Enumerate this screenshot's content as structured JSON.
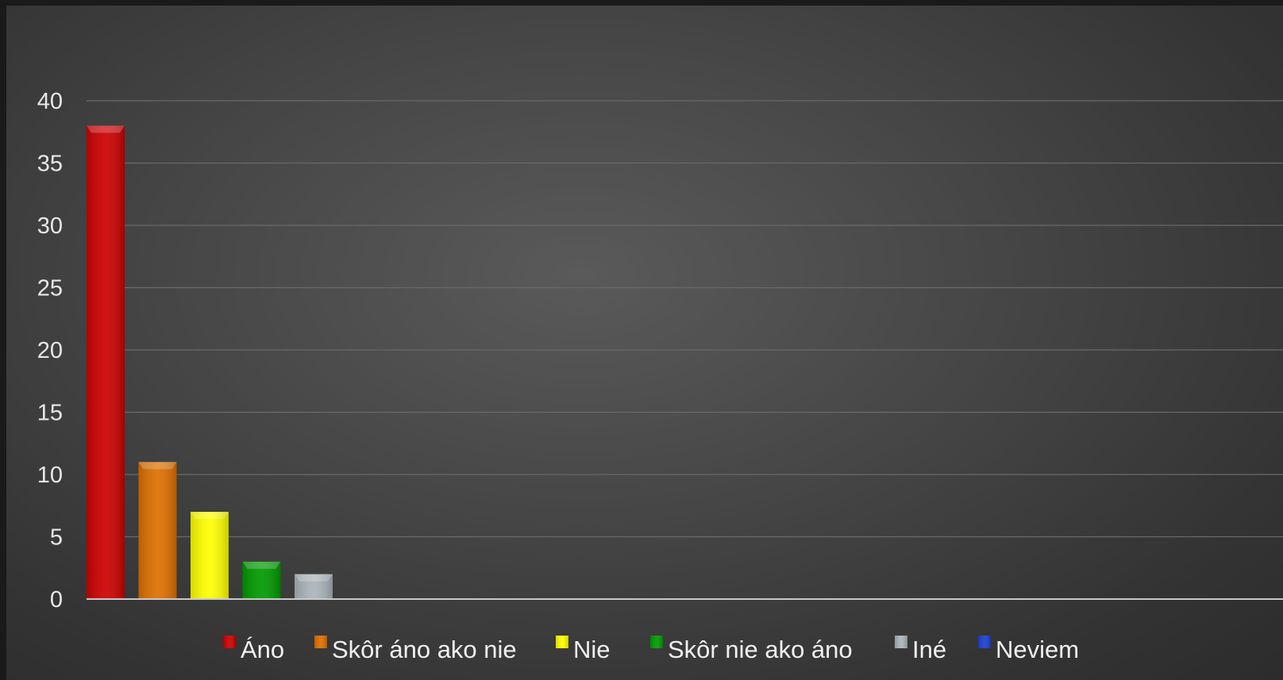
{
  "chart_data": {
    "type": "bar",
    "categories": [
      "Áno",
      "Skôr áno ako nie",
      "Nie",
      "Skôr nie ako áno",
      "Iné",
      "Neviem"
    ],
    "series": [
      {
        "name": "Áno",
        "value": 38,
        "color": "#cc0000"
      },
      {
        "name": "Skôr áno ako nie",
        "value": 11,
        "color": "#dd6f00"
      },
      {
        "name": "Nie",
        "value": 7,
        "color": "#ffff00"
      },
      {
        "name": "Skôr nie ako áno",
        "value": 3,
        "color": "#009a00"
      },
      {
        "name": "Iné",
        "value": 2,
        "color": "#aab4ba"
      },
      {
        "name": "Neviem",
        "value": 0,
        "color": "#1a3fcf"
      }
    ],
    "ylim": [
      0,
      40
    ],
    "yticks": [
      "0",
      "5",
      "10",
      "15",
      "20",
      "25",
      "30",
      "35",
      "40"
    ],
    "grid": true,
    "legend_position": "bottom",
    "background": "#444444"
  }
}
